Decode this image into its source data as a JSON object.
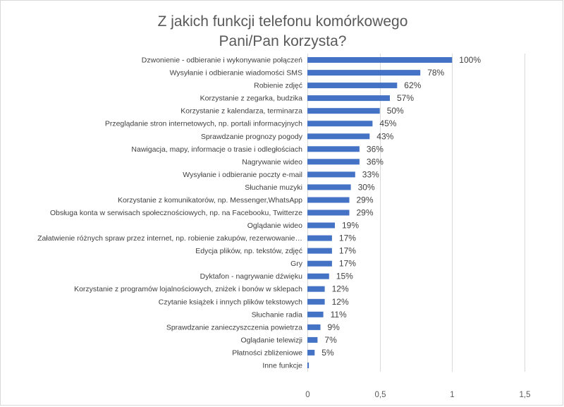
{
  "chart_data": {
    "type": "bar",
    "orientation": "horizontal",
    "title": "Z jakich funkcji telefonu komórkowego Pani/Pan korzysta?",
    "title_lines": [
      "Z jakich funkcji telefonu komórkowego",
      "Pani/Pan korzysta?"
    ],
    "categories": [
      "Dzwonienie - odbieranie i wykonywanie połączeń",
      "Wysyłanie i odbieranie wiadomości SMS",
      "Robienie zdjęć",
      "Korzystanie z zegarka, budzika",
      "Korzystanie z kalendarza, terminarza",
      "Przeglądanie stron internetowych, np. portali informacyjnych",
      "Sprawdzanie prognozy pogody",
      "Nawigacja, mapy, informacje o trasie i odległościach",
      "Nagrywanie wideo",
      "Wysyłanie i odbieranie poczty e-mail",
      "Słuchanie muzyki",
      "Korzystanie z komunikatorów, np. Messenger,WhatsApp",
      "Obsługa konta w serwisach społecznościowych, np. na Facebooku, Twitterze",
      "Oglądanie wideo",
      "Załatwienie różnych spraw przez internet, np. robienie zakupów, rezerwowanie…",
      "Edycja plików, np. tekstów, zdjęć",
      "Gry",
      "Dyktafon - nagrywanie dźwięku",
      "Korzystanie z programów lojalnościowych, zniżek i bonów w sklepach",
      "Czytanie książek i innych plików tekstowych",
      "Słuchanie radia",
      "Sprawdzanie zanieczyszczenia powietrza",
      "Oglądanie telewizji",
      "Płatności zbliżeniowe",
      "Inne funkcje"
    ],
    "values": [
      1.0,
      0.78,
      0.62,
      0.57,
      0.5,
      0.45,
      0.43,
      0.36,
      0.36,
      0.33,
      0.3,
      0.29,
      0.29,
      0.19,
      0.17,
      0.17,
      0.17,
      0.15,
      0.12,
      0.12,
      0.11,
      0.09,
      0.07,
      0.05,
      0.01
    ],
    "data_labels": [
      "100%",
      "78%",
      "62%",
      "57%",
      "50%",
      "45%",
      "43%",
      "36%",
      "36%",
      "33%",
      "30%",
      "29%",
      "29%",
      "19%",
      "17%",
      "17%",
      "17%",
      "15%",
      "12%",
      "12%",
      "11%",
      "9%",
      "7%",
      "5%",
      ""
    ],
    "xlim": [
      0,
      1.5
    ],
    "x_ticks": [
      0,
      0.5,
      1,
      1.5
    ],
    "x_tick_labels": [
      "0",
      "0,5",
      "1",
      "1,5"
    ],
    "grid": true,
    "legend": "none",
    "bar_color": "#4472c4"
  }
}
